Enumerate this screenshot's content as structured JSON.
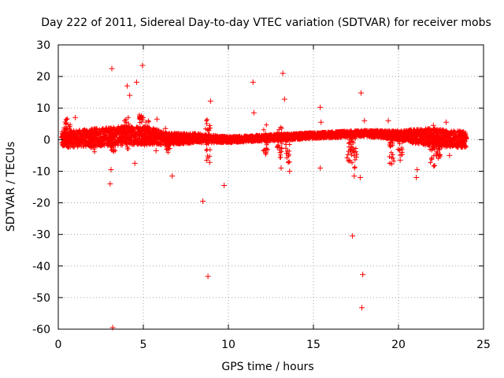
{
  "chart_data": {
    "type": "scatter",
    "title": "Day 222 of 2011, Sidereal Day-to-day VTEC variation (SDTVAR) for receiver mobs",
    "xlabel": "GPS time / hours",
    "ylabel": "SDTVAR / TECUs",
    "xlim": [
      0,
      25
    ],
    "ylim": [
      -60,
      30
    ],
    "xticks": [
      0,
      5,
      10,
      15,
      20,
      25
    ],
    "yticks": [
      -60,
      -50,
      -40,
      -30,
      -20,
      -10,
      0,
      10,
      20,
      30
    ],
    "xtick_labels": [
      "0",
      "5",
      "10",
      "15",
      "20",
      "25"
    ],
    "ytick_labels": [
      "-60",
      "-50",
      "-40",
      "-30",
      "-20",
      "-10",
      "0",
      "10",
      "20",
      "30"
    ],
    "grid": true,
    "marker": "+",
    "color": "#ff0000",
    "dense_band": {
      "x_range": [
        0.2,
        24.0
      ],
      "center": [
        [
          0.2,
          0.0
        ],
        [
          3.0,
          1.0
        ],
        [
          5.0,
          1.5
        ],
        [
          6.5,
          0.2
        ],
        [
          8.0,
          0.5
        ],
        [
          10.0,
          0.0
        ],
        [
          12.0,
          0.5
        ],
        [
          14.0,
          1.0
        ],
        [
          16.0,
          1.5
        ],
        [
          18.0,
          2.0
        ],
        [
          19.5,
          1.5
        ],
        [
          21.0,
          1.0
        ],
        [
          22.5,
          0.5
        ],
        [
          24.0,
          0.0
        ]
      ],
      "half_width": [
        [
          0.2,
          2.5
        ],
        [
          3.0,
          3.0
        ],
        [
          5.0,
          3.0
        ],
        [
          6.5,
          2.0
        ],
        [
          8.0,
          1.5
        ],
        [
          10.0,
          1.0
        ],
        [
          14.0,
          1.0
        ],
        [
          18.0,
          1.0
        ],
        [
          20.0,
          1.5
        ],
        [
          22.0,
          3.0
        ],
        [
          24.0,
          2.5
        ]
      ]
    },
    "spikes": [
      {
        "x": 0.4,
        "y_min": -2,
        "y_max": 7
      },
      {
        "x": 0.6,
        "y_min": -1,
        "y_max": 5
      },
      {
        "x": 2.0,
        "y_min": -4,
        "y_max": 3
      },
      {
        "x": 3.2,
        "y_min": -4,
        "y_max": 3
      },
      {
        "x": 4.0,
        "y_min": -3,
        "y_max": 7
      },
      {
        "x": 4.9,
        "y_min": 0,
        "y_max": 8
      },
      {
        "x": 5.2,
        "y_min": -2,
        "y_max": 6
      },
      {
        "x": 6.5,
        "y_min": -4,
        "y_max": 2
      },
      {
        "x": 8.8,
        "y_min": -7,
        "y_max": 7
      },
      {
        "x": 12.2,
        "y_min": -5,
        "y_max": 5
      },
      {
        "x": 13.0,
        "y_min": -6,
        "y_max": 5
      },
      {
        "x": 13.5,
        "y_min": -8,
        "y_max": 2
      },
      {
        "x": 17.1,
        "y_min": -7,
        "y_max": 2
      },
      {
        "x": 17.4,
        "y_min": -10,
        "y_max": 2
      },
      {
        "x": 19.6,
        "y_min": -8,
        "y_max": 1
      },
      {
        "x": 20.1,
        "y_min": -5,
        "y_max": 1
      },
      {
        "x": 22.0,
        "y_min": -9,
        "y_max": 4
      },
      {
        "x": 22.3,
        "y_min": -6,
        "y_max": 3
      }
    ],
    "outliers": [
      {
        "x": 3.15,
        "y": 22.5
      },
      {
        "x": 4.95,
        "y": 23.5
      },
      {
        "x": 4.05,
        "y": 17.0
      },
      {
        "x": 4.6,
        "y": 18.2
      },
      {
        "x": 4.2,
        "y": 14.0
      },
      {
        "x": 3.2,
        "y": -59.5
      },
      {
        "x": 3.05,
        "y": -14.0
      },
      {
        "x": 3.1,
        "y": -9.5
      },
      {
        "x": 4.5,
        "y": -7.5
      },
      {
        "x": 1.0,
        "y": 7.0
      },
      {
        "x": 6.7,
        "y": -11.5
      },
      {
        "x": 8.5,
        "y": -19.5
      },
      {
        "x": 8.8,
        "y": -43.3
      },
      {
        "x": 8.95,
        "y": 12.2
      },
      {
        "x": 9.75,
        "y": -14.5
      },
      {
        "x": 11.45,
        "y": 18.2
      },
      {
        "x": 11.5,
        "y": 8.5
      },
      {
        "x": 13.2,
        "y": 21.0
      },
      {
        "x": 13.3,
        "y": 12.8
      },
      {
        "x": 13.1,
        "y": -9.0
      },
      {
        "x": 13.6,
        "y": -10.0
      },
      {
        "x": 15.4,
        "y": 10.2
      },
      {
        "x": 15.45,
        "y": 5.5
      },
      {
        "x": 15.4,
        "y": -9.0
      },
      {
        "x": 17.3,
        "y": -30.5
      },
      {
        "x": 17.8,
        "y": 14.8
      },
      {
        "x": 17.9,
        "y": -42.7
      },
      {
        "x": 17.85,
        "y": -53.2
      },
      {
        "x": 17.4,
        "y": -11.5
      },
      {
        "x": 17.75,
        "y": -12.0
      },
      {
        "x": 18.0,
        "y": 6.0
      },
      {
        "x": 19.4,
        "y": 6.0
      },
      {
        "x": 20.1,
        "y": -6.5
      },
      {
        "x": 21.05,
        "y": -12.0
      },
      {
        "x": 21.1,
        "y": -9.5
      },
      {
        "x": 22.05,
        "y": 4.5
      },
      {
        "x": 22.8,
        "y": 5.5
      },
      {
        "x": 23.0,
        "y": -5.0
      },
      {
        "x": 5.8,
        "y": 6.5
      },
      {
        "x": 6.3,
        "y": 3.5
      },
      {
        "x": 5.75,
        "y": -3.5
      },
      {
        "x": 8.9,
        "y": -7.2
      }
    ]
  }
}
